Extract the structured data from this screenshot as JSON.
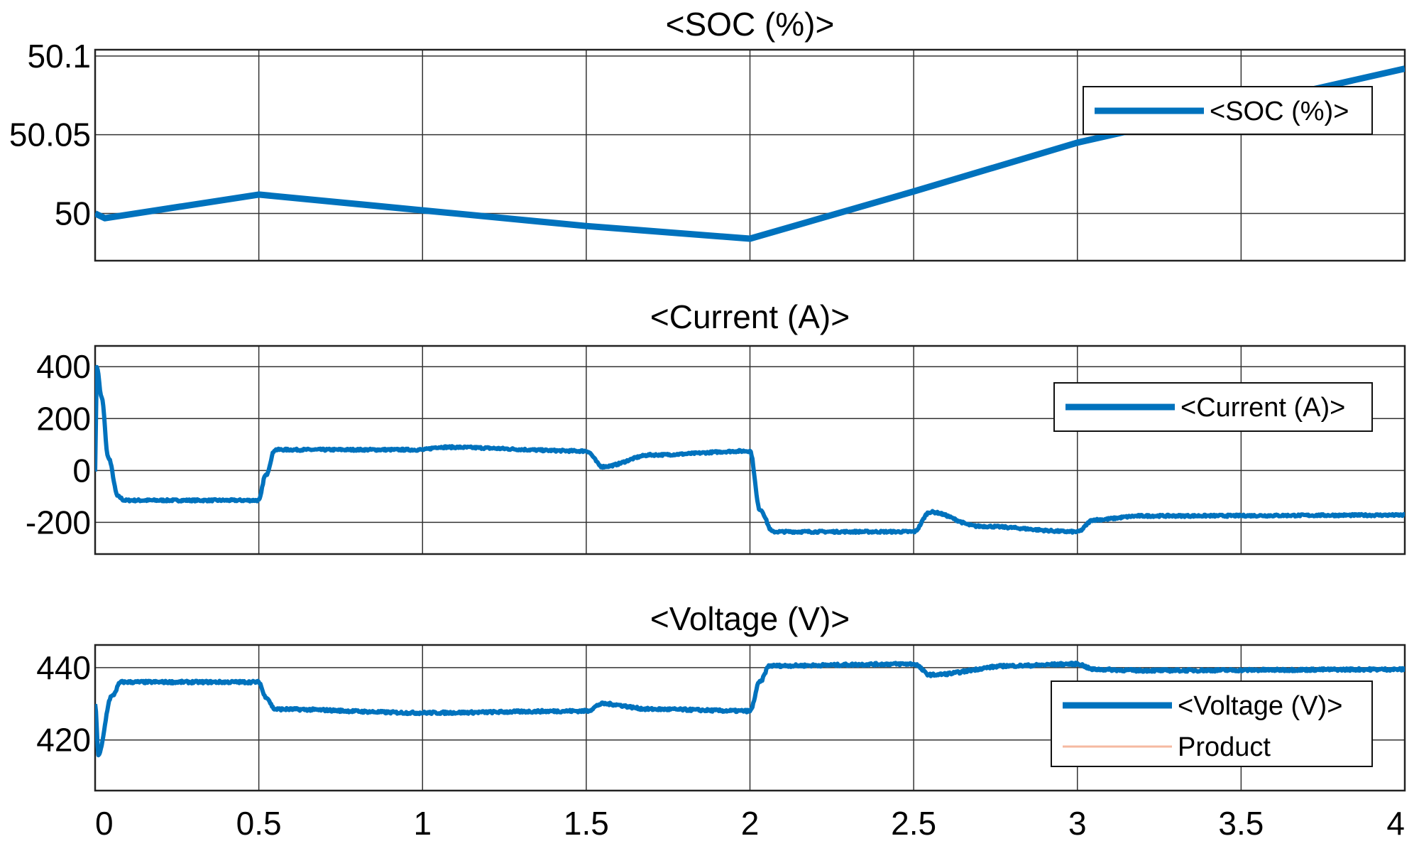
{
  "chart_data": [
    {
      "type": "line",
      "title": "<SOC (%)>",
      "xlim": [
        0,
        4
      ],
      "ylim": [
        49.97,
        50.104
      ],
      "yticks": [
        50,
        50.05,
        50.1
      ],
      "ytick_labels": [
        "50",
        "50.05",
        "50.1"
      ],
      "grid": true,
      "legend": {
        "placement": "top-right",
        "entries": [
          "<SOC (%)>"
        ]
      },
      "series": [
        {
          "name": "<SOC (%)>",
          "color": "#0072BD",
          "noise": 0,
          "x": [
            0,
            0.03,
            0.5,
            1.0,
            1.5,
            2.0,
            2.5,
            3.0,
            4.0
          ],
          "y": [
            50.0,
            49.997,
            50.012,
            50.002,
            49.992,
            49.984,
            50.014,
            50.045,
            50.092
          ]
        }
      ]
    },
    {
      "type": "line",
      "title": "<Current (A)>",
      "xlim": [
        0,
        4
      ],
      "ylim": [
        -322,
        480
      ],
      "yticks": [
        -200,
        0,
        200,
        400
      ],
      "ytick_labels": [
        "-200",
        "0",
        "200",
        "400"
      ],
      "grid": true,
      "legend": {
        "placement": "top-right",
        "entries": [
          "<Current (A)>"
        ]
      },
      "series": [
        {
          "name": "<Current (A)>",
          "color": "#0072BD",
          "noise": 4,
          "x": [
            0,
            0.005,
            0.02,
            0.04,
            0.07,
            0.09,
            0.5,
            0.52,
            0.55,
            1.0,
            1.05,
            1.5,
            1.55,
            1.7,
            2.0,
            2.03,
            2.07,
            2.5,
            2.55,
            2.7,
            3.0,
            3.05,
            3.2,
            4.0
          ],
          "y": [
            0,
            400,
            280,
            50,
            -100,
            -115,
            -115,
            -20,
            80,
            80,
            90,
            75,
            15,
            60,
            75,
            -150,
            -236,
            -236,
            -160,
            -215,
            -236,
            -190,
            -175,
            -172
          ]
        }
      ]
    },
    {
      "type": "line",
      "title": "<Voltage (V)>",
      "xlim": [
        0,
        4
      ],
      "ylim": [
        406,
        446.25
      ],
      "yticks": [
        420,
        440
      ],
      "ytick_labels": [
        "420",
        "440"
      ],
      "grid": true,
      "legend": {
        "placement": "bottom-right",
        "entries": [
          "<Voltage (V)>",
          "Product"
        ]
      },
      "series": [
        {
          "name": "<Voltage (V)>",
          "color": "#0072BD",
          "noise": 0.35,
          "x": [
            0,
            0.01,
            0.05,
            0.08,
            0.5,
            0.52,
            0.55,
            1.0,
            1.5,
            1.55,
            1.7,
            2.0,
            2.03,
            2.06,
            2.5,
            2.55,
            2.8,
            3.0,
            3.05,
            3.2,
            4.0
          ],
          "y": [
            430,
            416,
            432,
            436,
            436,
            432,
            428.5,
            427.5,
            428,
            430,
            428.5,
            428,
            436,
            440.5,
            441,
            438,
            440.5,
            441,
            439.5,
            439.2,
            439.5
          ]
        },
        {
          "name": "Product",
          "color": "#F5B9A0",
          "noise": 0,
          "x": [],
          "y": []
        }
      ]
    }
  ],
  "x_axis": {
    "xticks": [
      0,
      0.5,
      1,
      1.5,
      2,
      2.5,
      3,
      3.5,
      4
    ],
    "xtick_labels": [
      "0",
      "0.5",
      "1",
      "1.5",
      "2",
      "2.5",
      "3",
      "3.5",
      "4"
    ]
  }
}
